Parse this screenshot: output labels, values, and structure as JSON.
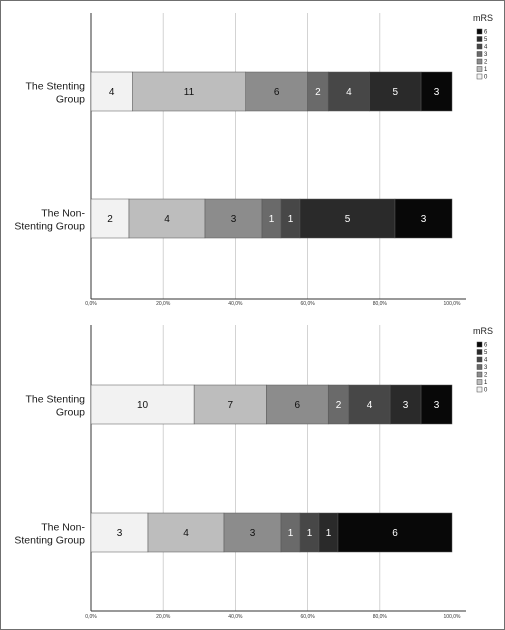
{
  "chart_data": [
    {
      "type": "bar",
      "orientation": "horizontal-stacked-100",
      "categories": [
        "The Stenting Group",
        "The Non-Stenting Group"
      ],
      "category_lines": [
        [
          "The Stenting",
          "Group"
        ],
        [
          "The Non-",
          "Stenting Group"
        ]
      ],
      "legend_title": "mRS",
      "legend_entries": [
        "6",
        "5",
        "4",
        "3",
        "2",
        "1",
        "0"
      ],
      "legend_placement": "top-right",
      "x_ticks": [
        "0,0%",
        "20,0%",
        "40,0%",
        "60,0%",
        "80,0%",
        "100,0%"
      ],
      "xlim": [
        0,
        100
      ],
      "grid": true,
      "series": [
        {
          "name": "0",
          "values": [
            4,
            2
          ]
        },
        {
          "name": "1",
          "values": [
            11,
            4
          ]
        },
        {
          "name": "2",
          "values": [
            6,
            3
          ]
        },
        {
          "name": "3",
          "values": [
            2,
            1
          ]
        },
        {
          "name": "4",
          "values": [
            4,
            1
          ]
        },
        {
          "name": "5",
          "values": [
            5,
            5
          ]
        },
        {
          "name": "6",
          "values": [
            3,
            3
          ]
        }
      ]
    },
    {
      "type": "bar",
      "orientation": "horizontal-stacked-100",
      "categories": [
        "The Stenting Group",
        "The Non-Stenting Group"
      ],
      "category_lines": [
        [
          "The Stenting",
          "Group"
        ],
        [
          "The Non-",
          "Stenting Group"
        ]
      ],
      "legend_title": "mRS",
      "legend_entries": [
        "6",
        "5",
        "4",
        "3",
        "2",
        "1",
        "0"
      ],
      "legend_placement": "top-right",
      "x_ticks": [
        "0,0%",
        "20,0%",
        "40,0%",
        "60,0%",
        "80,0%",
        "100,0%"
      ],
      "xlim": [
        0,
        100
      ],
      "grid": true,
      "series": [
        {
          "name": "0",
          "values": [
            10,
            3
          ]
        },
        {
          "name": "1",
          "values": [
            7,
            4
          ]
        },
        {
          "name": "2",
          "values": [
            6,
            3
          ]
        },
        {
          "name": "3",
          "values": [
            2,
            1
          ]
        },
        {
          "name": "4",
          "values": [
            4,
            1
          ]
        },
        {
          "name": "5",
          "values": [
            3,
            1
          ]
        },
        {
          "name": "6",
          "values": [
            3,
            6
          ]
        }
      ]
    }
  ],
  "colors": {
    "0": "#f2f2f2",
    "1": "#bdbdbd",
    "2": "#8c8c8c",
    "3": "#6a6a6a",
    "4": "#474747",
    "5": "#2a2a2a",
    "6": "#080808",
    "grid": "#c8c8c8",
    "axis": "#333333",
    "frame": "#6f6f6f"
  }
}
